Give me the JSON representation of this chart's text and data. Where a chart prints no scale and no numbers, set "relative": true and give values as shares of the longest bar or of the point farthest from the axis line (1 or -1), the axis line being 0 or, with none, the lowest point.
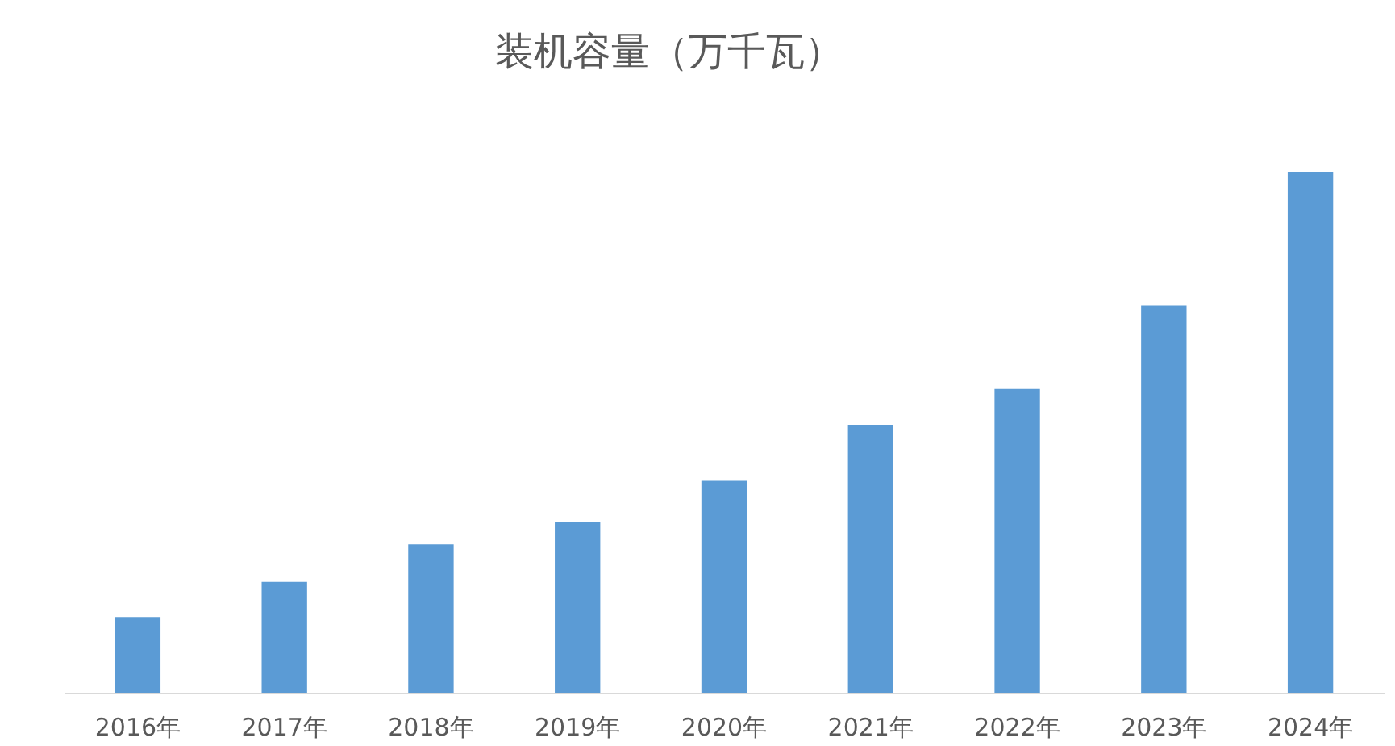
{
  "chart_data": {
    "type": "bar",
    "title": "装机容量（万千瓦）",
    "categories": [
      "2016年",
      "2017年",
      "2018年",
      "2019年",
      "2020年",
      "2021年",
      "2022年",
      "2023年",
      "2024年"
    ],
    "values": [
      0.145,
      0.214,
      0.286,
      0.328,
      0.408,
      0.515,
      0.584,
      0.744,
      1
    ],
    "color": "#5b9bd5",
    "relative": true
  }
}
